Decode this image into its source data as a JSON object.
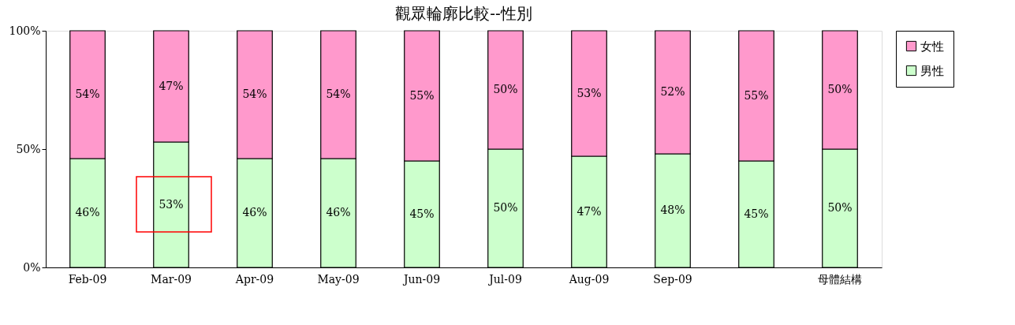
{
  "chart_data": {
    "type": "bar",
    "title": "觀眾輪廓比較--性別",
    "stacked": true,
    "categories": [
      "Feb-09",
      "Mar-09",
      "Apr-09",
      "May-09",
      "Jun-09",
      "Jul-09",
      "Aug-09",
      "Sep-09",
      null,
      "母體結構"
    ],
    "series": [
      {
        "name": "男性",
        "color": "#ccffcc",
        "values": [
          46,
          53,
          46,
          46,
          45,
          50,
          47,
          48,
          45,
          50
        ],
        "value_labels": [
          "46%",
          "53%",
          "46%",
          "46%",
          "45%",
          "50%",
          "47%",
          "48%",
          "45%",
          "50%"
        ]
      },
      {
        "name": "女性",
        "color": "#ff99cc",
        "values": [
          54,
          47,
          54,
          54,
          55,
          50,
          53,
          52,
          55,
          50
        ],
        "value_labels": [
          "54%",
          "47%",
          "54%",
          "54%",
          "55%",
          "50%",
          "53%",
          "52%",
          "55%",
          "50%"
        ]
      }
    ],
    "ylim": [
      0,
      100
    ],
    "yticks": [
      {
        "value": 0,
        "label": "0%"
      },
      {
        "value": 50,
        "label": "50%"
      },
      {
        "value": 100,
        "label": "100%"
      }
    ],
    "legend": "right",
    "grid": false
  }
}
